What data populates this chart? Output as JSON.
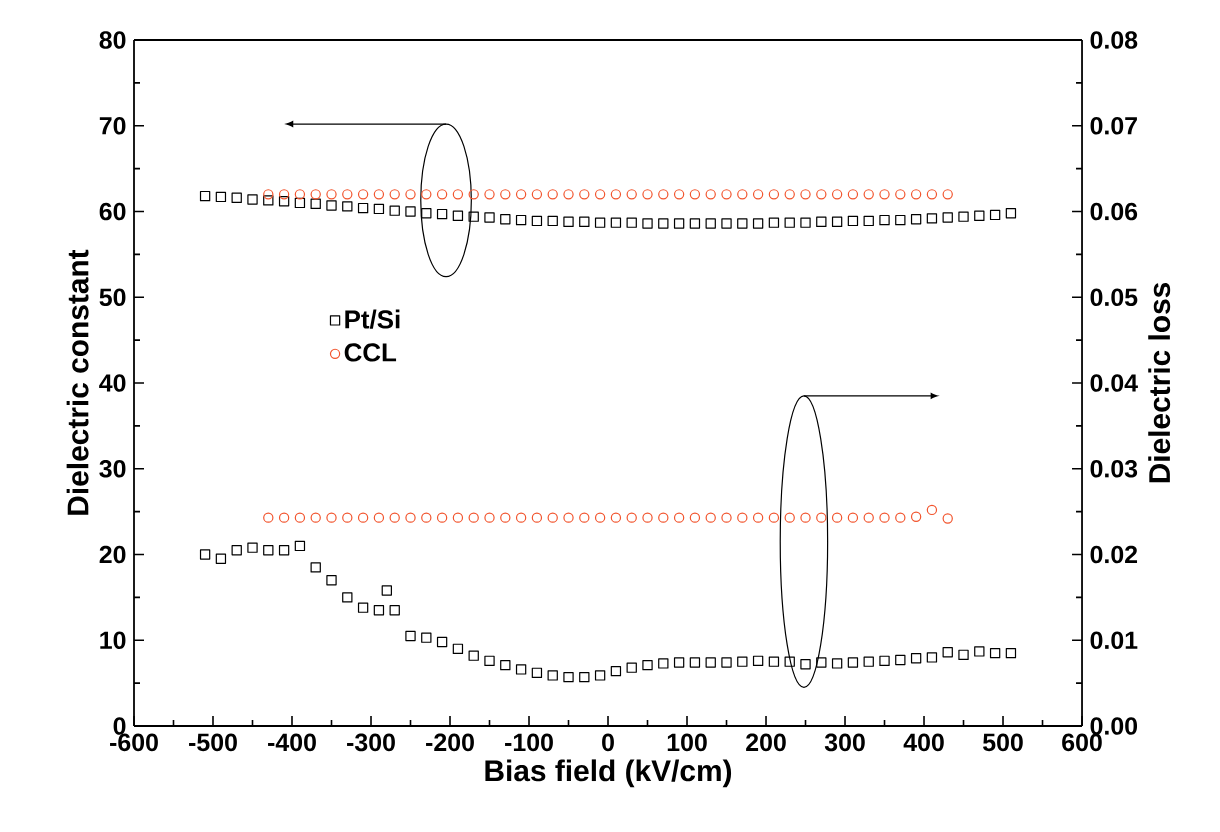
{
  "chart_data": {
    "type": "scatter",
    "xlabel": "Bias field (kV/cm)",
    "ylabel": "Dielectric constant",
    "y2label": "Dielectric loss",
    "xlim": [
      -600,
      600
    ],
    "xticks": [
      -600,
      -500,
      -400,
      -300,
      -200,
      -100,
      0,
      100,
      200,
      300,
      400,
      500,
      600
    ],
    "ylim": [
      0,
      80
    ],
    "yticks": [
      0,
      10,
      20,
      30,
      40,
      50,
      60,
      70,
      80
    ],
    "y2lim": [
      0,
      0.08
    ],
    "y2ticks": [
      {
        "value": 0,
        "label": "0.00"
      },
      {
        "value": 0.01,
        "label": "0.01"
      },
      {
        "value": 0.02,
        "label": "0.02"
      },
      {
        "value": 0.03,
        "label": "0.03"
      },
      {
        "value": 0.04,
        "label": "0.04"
      },
      {
        "value": 0.05,
        "label": "0.05"
      },
      {
        "value": 0.06,
        "label": "0.06"
      },
      {
        "value": 0.07,
        "label": "0.07"
      },
      {
        "value": 0.08,
        "label": "0.08"
      }
    ],
    "legend": "left",
    "grid": false,
    "series": [
      {
        "name": "Pt/Si",
        "color": "#000000",
        "marker": "square",
        "x": [
          -510,
          -490,
          -470,
          -450,
          -430,
          -410,
          -390,
          -370,
          -350,
          -330,
          -310,
          -290,
          -270,
          -250,
          -230,
          -210,
          -190,
          -170,
          -150,
          -130,
          -110,
          -90,
          -70,
          -50,
          -30,
          -10,
          10,
          30,
          50,
          70,
          90,
          110,
          130,
          150,
          170,
          190,
          210,
          230,
          250,
          270,
          290,
          310,
          330,
          350,
          370,
          390,
          410,
          430,
          450,
          470,
          490,
          510
        ],
        "values": [
          61.8,
          61.7,
          61.6,
          61.4,
          61.3,
          61.2,
          61.0,
          60.9,
          60.7,
          60.6,
          60.4,
          60.3,
          60.1,
          60.0,
          59.8,
          59.7,
          59.5,
          59.4,
          59.3,
          59.1,
          59.0,
          58.9,
          58.9,
          58.8,
          58.8,
          58.7,
          58.7,
          58.7,
          58.6,
          58.6,
          58.6,
          58.6,
          58.6,
          58.6,
          58.6,
          58.6,
          58.7,
          58.7,
          58.7,
          58.8,
          58.8,
          58.9,
          58.9,
          59.0,
          59.0,
          59.1,
          59.2,
          59.3,
          59.4,
          59.5,
          59.6,
          59.8
        ]
      },
      {
        "name": "CCL",
        "color": "#f2542d",
        "marker": "circle",
        "x": [
          -430,
          -410,
          -390,
          -370,
          -350,
          -330,
          -310,
          -290,
          -270,
          -250,
          -230,
          -210,
          -190,
          -170,
          -150,
          -130,
          -110,
          -90,
          -70,
          -50,
          -30,
          -10,
          10,
          30,
          50,
          70,
          90,
          110,
          130,
          150,
          170,
          190,
          210,
          230,
          250,
          270,
          290,
          310,
          330,
          350,
          370,
          390,
          410,
          430
        ],
        "values": [
          62,
          62,
          62,
          62,
          62,
          62,
          62,
          62,
          62,
          62,
          62,
          62,
          62,
          62,
          62,
          62,
          62,
          62,
          62,
          62,
          62,
          62,
          62,
          62,
          62,
          62,
          62,
          62,
          62,
          62,
          62,
          62,
          62,
          62,
          62,
          62,
          62,
          62,
          62,
          62,
          62,
          62,
          62,
          62
        ]
      },
      {
        "color": "#000000",
        "marker": "square",
        "axis": "y2",
        "x": [
          -510,
          -490,
          -470,
          -450,
          -430,
          -410,
          -390,
          -370,
          -350,
          -330,
          -310,
          -290,
          -280,
          -270,
          -250,
          -230,
          -210,
          -190,
          -170,
          -150,
          -130,
          -110,
          -90,
          -70,
          -50,
          -30,
          -10,
          10,
          30,
          50,
          70,
          90,
          110,
          130,
          150,
          170,
          190,
          210,
          230,
          250,
          270,
          290,
          310,
          330,
          350,
          370,
          390,
          410,
          430,
          450,
          470,
          490,
          510
        ],
        "values": [
          0.02,
          0.0195,
          0.0205,
          0.0208,
          0.0205,
          0.0205,
          0.021,
          0.0185,
          0.017,
          0.015,
          0.0138,
          0.0135,
          0.0158,
          0.0135,
          0.0105,
          0.0103,
          0.0098,
          0.009,
          0.0082,
          0.0076,
          0.0071,
          0.0066,
          0.0062,
          0.0059,
          0.0057,
          0.0057,
          0.0059,
          0.0064,
          0.0068,
          0.0071,
          0.0073,
          0.0074,
          0.0074,
          0.0074,
          0.0074,
          0.0075,
          0.0076,
          0.0075,
          0.0075,
          0.0072,
          0.0074,
          0.0073,
          0.0074,
          0.0075,
          0.0076,
          0.0077,
          0.0079,
          0.008,
          0.0086,
          0.0083,
          0.0087,
          0.0085,
          0.0085
        ]
      },
      {
        "color": "#f2542d",
        "marker": "circle",
        "axis": "y2",
        "x": [
          -430,
          -410,
          -390,
          -370,
          -350,
          -330,
          -310,
          -290,
          -270,
          -250,
          -230,
          -210,
          -190,
          -170,
          -150,
          -130,
          -110,
          -90,
          -70,
          -50,
          -30,
          -10,
          10,
          30,
          50,
          70,
          90,
          110,
          130,
          150,
          170,
          190,
          210,
          230,
          250,
          270,
          290,
          310,
          330,
          350,
          370,
          390,
          410,
          430
        ],
        "values": [
          0.0243,
          0.0243,
          0.0243,
          0.0243,
          0.0243,
          0.0243,
          0.0243,
          0.0243,
          0.0243,
          0.0243,
          0.0243,
          0.0243,
          0.0243,
          0.0243,
          0.0243,
          0.0243,
          0.0243,
          0.0243,
          0.0243,
          0.0243,
          0.0243,
          0.0243,
          0.0243,
          0.0243,
          0.0243,
          0.0243,
          0.0243,
          0.0243,
          0.0243,
          0.0243,
          0.0243,
          0.0243,
          0.0243,
          0.0243,
          0.0243,
          0.0243,
          0.0243,
          0.0243,
          0.0243,
          0.0243,
          0.0243,
          0.0244,
          0.0252,
          0.0242
        ]
      }
    ]
  }
}
